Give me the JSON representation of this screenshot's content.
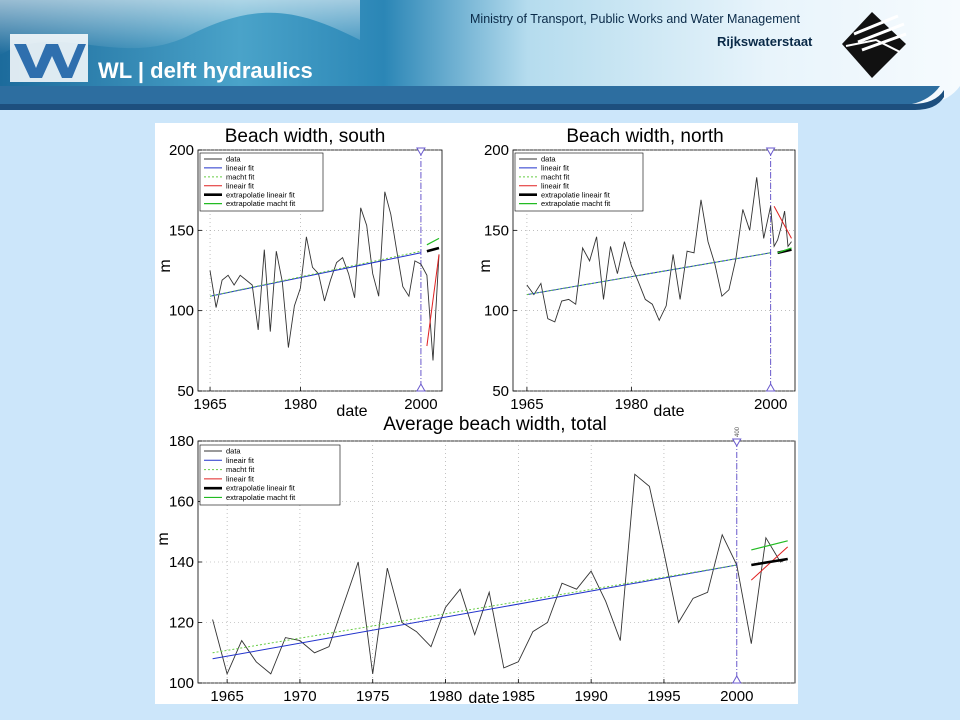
{
  "header": {
    "company": "WL | delft hydraulics",
    "ministry": "Ministry of Transport, Public Works and Water Management",
    "agency": "Rijkswaterstaat"
  },
  "legend_full": [
    "data",
    "lineair fit",
    "macht fit",
    "lineair fit",
    "extrapolatie lineair fit",
    "extrapolatie macht fit"
  ],
  "colors": {
    "data": "#333333",
    "lineair_fit": "#2233cc",
    "macht_fit": "#66cc44",
    "lineair_fit_recent": "#e02020",
    "extrapolatie_lineair": "#000000",
    "extrapolatie_macht": "#22bb22",
    "marker": "#6a5acd"
  },
  "chart_data": [
    {
      "type": "line",
      "title": "Beach width, south",
      "xlabel": "date",
      "ylabel": "m",
      "xlim": [
        1963,
        2003.5
      ],
      "ylim": [
        50,
        200
      ],
      "xticks": [
        1965,
        1980,
        2000
      ],
      "yticks": [
        50,
        100,
        150,
        200
      ],
      "grid": true,
      "legend_position": "top-left",
      "marker_year": 2000,
      "series": [
        {
          "name": "data",
          "x": [
            1965,
            1966,
            1967,
            1968,
            1969,
            1970,
            1971,
            1972,
            1973,
            1974,
            1975,
            1976,
            1977,
            1978,
            1979,
            1980,
            1981,
            1982,
            1983,
            1984,
            1985,
            1986,
            1987,
            1988,
            1989,
            1990,
            1991,
            1992,
            1993,
            1994,
            1995,
            1996,
            1997,
            1998,
            1999,
            2000,
            2001,
            2002,
            2003
          ],
          "y": [
            125,
            102,
            119,
            122,
            116,
            122,
            119,
            116,
            88,
            138,
            87,
            137,
            118,
            77,
            103,
            114,
            146,
            127,
            123,
            106,
            119,
            130,
            133,
            123,
            108,
            164,
            153,
            123,
            109,
            174,
            160,
            137,
            115,
            109,
            131,
            129,
            122,
            69,
            135
          ]
        },
        {
          "name": "lineair fit",
          "x": [
            1965,
            2000
          ],
          "y": [
            109,
            136
          ]
        },
        {
          "name": "macht fit",
          "x": [
            1965,
            2000
          ],
          "y": [
            109,
            137
          ]
        },
        {
          "name": "lineair fit",
          "x": [
            2001,
            2003
          ],
          "y": [
            78,
            135
          ]
        },
        {
          "name": "extrapolatie lineair fit",
          "x": [
            2001,
            2003
          ],
          "y": [
            137,
            139
          ]
        },
        {
          "name": "extrapolatie macht fit",
          "x": [
            2001,
            2003
          ],
          "y": [
            141,
            145
          ]
        }
      ]
    },
    {
      "type": "line",
      "title": "Beach width, north",
      "xlabel": "date",
      "ylabel": "m",
      "xlim": [
        1963,
        2003.5
      ],
      "ylim": [
        50,
        200
      ],
      "xticks": [
        1965,
        1980,
        2000
      ],
      "yticks": [
        50,
        100,
        150,
        200
      ],
      "grid": true,
      "legend_position": "top-left",
      "marker_year": 2000,
      "series": [
        {
          "name": "data",
          "x": [
            1965,
            1966,
            1967,
            1968,
            1969,
            1970,
            1971,
            1972,
            1973,
            1974,
            1975,
            1976,
            1977,
            1978,
            1979,
            1980,
            1981,
            1982,
            1983,
            1984,
            1985,
            1986,
            1987,
            1988,
            1989,
            1990,
            1991,
            1992,
            1993,
            1994,
            1995,
            1996,
            1997,
            1998,
            1999,
            2000,
            2000.5,
            2001,
            2001.5,
            2002,
            2002.5,
            2003
          ],
          "y": [
            116,
            110,
            117,
            95,
            93,
            106,
            107,
            104,
            139,
            131,
            146,
            107,
            140,
            123,
            143,
            128,
            118,
            107,
            104,
            94,
            103,
            135,
            107,
            137,
            136,
            169,
            143,
            129,
            109,
            113,
            132,
            163,
            150,
            183,
            145,
            165,
            140,
            144,
            152,
            162,
            140,
            143
          ]
        },
        {
          "name": "lineair fit",
          "x": [
            1965,
            2000
          ],
          "y": [
            110,
            136
          ]
        },
        {
          "name": "macht fit",
          "x": [
            1965,
            2000
          ],
          "y": [
            110,
            136
          ]
        },
        {
          "name": "lineair fit",
          "x": [
            2000.5,
            2003
          ],
          "y": [
            165,
            145
          ]
        },
        {
          "name": "extrapolatie lineair fit",
          "x": [
            2001,
            2003
          ],
          "y": [
            136,
            138
          ]
        },
        {
          "name": "extrapolatie macht fit",
          "x": [
            2001,
            2003
          ],
          "y": [
            136,
            139
          ]
        }
      ]
    },
    {
      "type": "line",
      "title": "Average beach width, total",
      "xlabel": "date",
      "ylabel": "m",
      "xlim": [
        1963,
        2004
      ],
      "ylim": [
        100,
        180
      ],
      "xticks": [
        1965,
        1970,
        1975,
        1980,
        1985,
        1990,
        1995,
        2000
      ],
      "yticks": [
        100,
        120,
        140,
        160,
        180
      ],
      "grid": true,
      "legend_position": "top-left",
      "marker_year": 2000,
      "marker_label": "400",
      "series": [
        {
          "name": "data",
          "x": [
            1964,
            1965,
            1966,
            1967,
            1968,
            1969,
            1970,
            1971,
            1972,
            1973,
            1974,
            1975,
            1976,
            1977,
            1978,
            1979,
            1980,
            1981,
            1982,
            1983,
            1984,
            1985,
            1986,
            1987,
            1988,
            1989,
            1990,
            1991,
            1992,
            1993,
            1994,
            1995,
            1996,
            1997,
            1998,
            1999,
            2000,
            2001,
            2002,
            2003,
            2003.5
          ],
          "y": [
            121,
            103,
            114,
            107,
            103,
            115,
            114,
            110,
            112,
            126,
            140,
            103,
            138,
            120,
            117,
            112,
            125,
            131,
            116,
            130,
            105,
            107,
            117,
            120,
            133,
            131,
            137,
            127,
            114,
            169,
            165,
            143,
            120,
            128,
            130,
            149,
            139,
            113,
            148,
            140,
            141
          ]
        },
        {
          "name": "lineair fit",
          "x": [
            1964,
            2000
          ],
          "y": [
            108,
            139
          ]
        },
        {
          "name": "macht fit",
          "x": [
            1964,
            2000
          ],
          "y": [
            110,
            139
          ]
        },
        {
          "name": "lineair fit",
          "x": [
            2001,
            2003.5
          ],
          "y": [
            134,
            145
          ]
        },
        {
          "name": "extrapolatie lineair fit",
          "x": [
            2001,
            2003.5
          ],
          "y": [
            139,
            141
          ]
        },
        {
          "name": "extrapolatie macht fit",
          "x": [
            2001,
            2003.5
          ],
          "y": [
            144,
            147
          ]
        }
      ]
    }
  ]
}
